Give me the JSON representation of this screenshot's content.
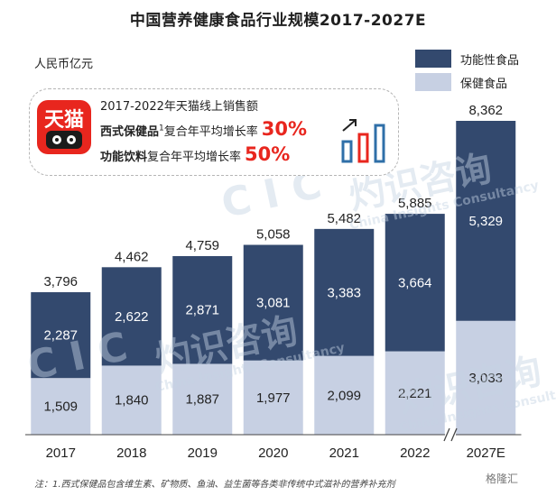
{
  "title": "中国营养健康食品行业规模2017-2027E",
  "unit_label": "人民币亿元",
  "legend": [
    {
      "label": "功能性食品",
      "color": "#33496e"
    },
    {
      "label": "保健食品",
      "color": "#c7d0e3"
    }
  ],
  "callout": {
    "logo_text": "天猫",
    "line1": "2017-2022年天猫线上销售额",
    "line2_prefix": "西式保健品",
    "line2_sup": "1",
    "line2_suffix": "复合年平均增长率",
    "line2_rate": "30%",
    "line3_prefix": "功能饮料",
    "line3_suffix": "复合年平均增长率",
    "line3_rate": "50%",
    "mini_chart_colors": [
      "#e8261e",
      "#2f6fa8"
    ]
  },
  "watermarks": [
    "C I C",
    "灼识咨询",
    "China Insights Consultancy"
  ],
  "chart_data": {
    "type": "bar",
    "stacked": true,
    "categories": [
      "2017",
      "2018",
      "2019",
      "2020",
      "2021",
      "2022",
      "2027E"
    ],
    "series": [
      {
        "name": "保健食品",
        "values": [
          1509,
          1840,
          1887,
          1977,
          2099,
          2221,
          3033
        ],
        "labels": [
          "1,509",
          "1,840",
          "1,887",
          "1,977",
          "2,099",
          "2,221",
          "3,033"
        ],
        "color": "#c7d0e3"
      },
      {
        "name": "功能性食品",
        "values": [
          2287,
          2622,
          2871,
          3081,
          3383,
          3664,
          5329
        ],
        "labels": [
          "2,287",
          "2,622",
          "2,871",
          "3,081",
          "3,383",
          "3,664",
          "5,329"
        ],
        "color": "#33496e"
      }
    ],
    "totals": [
      3796,
      4462,
      4759,
      5058,
      5482,
      5885,
      8362
    ],
    "total_labels": [
      "3,796",
      "4,462",
      "4,759",
      "5,058",
      "5,482",
      "5,885",
      "8,362"
    ],
    "axis_break_after": "2022",
    "ylim": [
      0,
      8362
    ],
    "grid": false,
    "legend_position": "top-right"
  },
  "footnote": "注：1.西式保健品包含维生素、矿物质、鱼油、益生菌等各类非传统中式滋补的营养补充剂",
  "source_badge": "格隆汇"
}
